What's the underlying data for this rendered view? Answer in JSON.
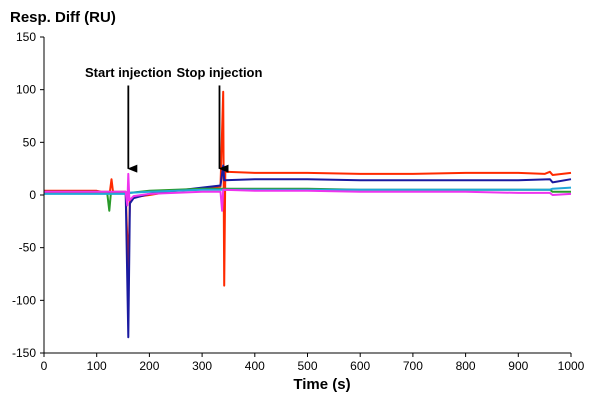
{
  "chart_data": {
    "type": "line",
    "ylabel": "Resp. Diff (RU)",
    "xlabel": "Time (s)",
    "xlim": [
      0,
      1000
    ],
    "ylim": [
      -150,
      150
    ],
    "xticks": [
      0,
      100,
      200,
      300,
      400,
      500,
      600,
      700,
      800,
      900,
      1000
    ],
    "yticks": [
      150,
      100,
      50,
      0,
      -50,
      -100,
      -150
    ],
    "grid": false,
    "legend": "none",
    "annotations": [
      {
        "text": "Start injection",
        "x": 160,
        "y_from": 104,
        "y_to": 25
      },
      {
        "text": "Stop injection",
        "x": 333,
        "y_from": 104,
        "y_to": 25
      }
    ],
    "series": [
      {
        "color": "#ff2a00",
        "points": [
          [
            0,
            4
          ],
          [
            100,
            4
          ],
          [
            110,
            3
          ],
          [
            125,
            3
          ],
          [
            128,
            15
          ],
          [
            131,
            3
          ],
          [
            155,
            3
          ],
          [
            160,
            -73
          ],
          [
            163,
            -5
          ],
          [
            170,
            -2
          ],
          [
            200,
            0
          ],
          [
            250,
            4
          ],
          [
            300,
            6
          ],
          [
            335,
            8
          ],
          [
            340,
            98
          ],
          [
            342,
            -86
          ],
          [
            344,
            22
          ],
          [
            400,
            21
          ],
          [
            500,
            21
          ],
          [
            600,
            20
          ],
          [
            700,
            20
          ],
          [
            800,
            21
          ],
          [
            900,
            21
          ],
          [
            950,
            20
          ],
          [
            960,
            22
          ],
          [
            965,
            19
          ],
          [
            1000,
            21
          ]
        ]
      },
      {
        "color": "#1a1aa0",
        "points": [
          [
            0,
            3
          ],
          [
            100,
            3
          ],
          [
            125,
            2
          ],
          [
            155,
            2
          ],
          [
            160,
            -135
          ],
          [
            163,
            -8
          ],
          [
            170,
            -3
          ],
          [
            200,
            1
          ],
          [
            250,
            4
          ],
          [
            300,
            7
          ],
          [
            335,
            9
          ],
          [
            340,
            28
          ],
          [
            342,
            14
          ],
          [
            400,
            15
          ],
          [
            500,
            15
          ],
          [
            600,
            14
          ],
          [
            700,
            14
          ],
          [
            800,
            14
          ],
          [
            900,
            14
          ],
          [
            960,
            15
          ],
          [
            965,
            12
          ],
          [
            1000,
            15
          ]
        ]
      },
      {
        "color": "#2a9a2a",
        "points": [
          [
            0,
            2
          ],
          [
            100,
            2
          ],
          [
            120,
            2
          ],
          [
            124,
            -15
          ],
          [
            127,
            2
          ],
          [
            155,
            2
          ],
          [
            160,
            3
          ],
          [
            163,
            2
          ],
          [
            200,
            4
          ],
          [
            250,
            5
          ],
          [
            300,
            6
          ],
          [
            340,
            6
          ],
          [
            400,
            6
          ],
          [
            500,
            6
          ],
          [
            600,
            5
          ],
          [
            700,
            5
          ],
          [
            800,
            5
          ],
          [
            900,
            5
          ],
          [
            960,
            5
          ],
          [
            965,
            3
          ],
          [
            1000,
            3
          ]
        ]
      },
      {
        "color": "#20a8d8",
        "points": [
          [
            0,
            1
          ],
          [
            100,
            1
          ],
          [
            155,
            1
          ],
          [
            160,
            2
          ],
          [
            200,
            3
          ],
          [
            250,
            4
          ],
          [
            300,
            5
          ],
          [
            340,
            5
          ],
          [
            400,
            5
          ],
          [
            500,
            5
          ],
          [
            600,
            5
          ],
          [
            700,
            5
          ],
          [
            800,
            5
          ],
          [
            900,
            5
          ],
          [
            960,
            5
          ],
          [
            965,
            6
          ],
          [
            1000,
            7
          ]
        ]
      },
      {
        "color": "#ee33ee",
        "points": [
          [
            0,
            3
          ],
          [
            100,
            3
          ],
          [
            155,
            3
          ],
          [
            158,
            -10
          ],
          [
            160,
            20
          ],
          [
            162,
            -5
          ],
          [
            170,
            -1
          ],
          [
            200,
            1
          ],
          [
            300,
            3
          ],
          [
            335,
            3
          ],
          [
            338,
            -15
          ],
          [
            340,
            5
          ],
          [
            400,
            4
          ],
          [
            500,
            4
          ],
          [
            600,
            3
          ],
          [
            700,
            3
          ],
          [
            800,
            3
          ],
          [
            900,
            2
          ],
          [
            960,
            2
          ],
          [
            965,
            0
          ],
          [
            1000,
            1
          ]
        ]
      }
    ]
  }
}
